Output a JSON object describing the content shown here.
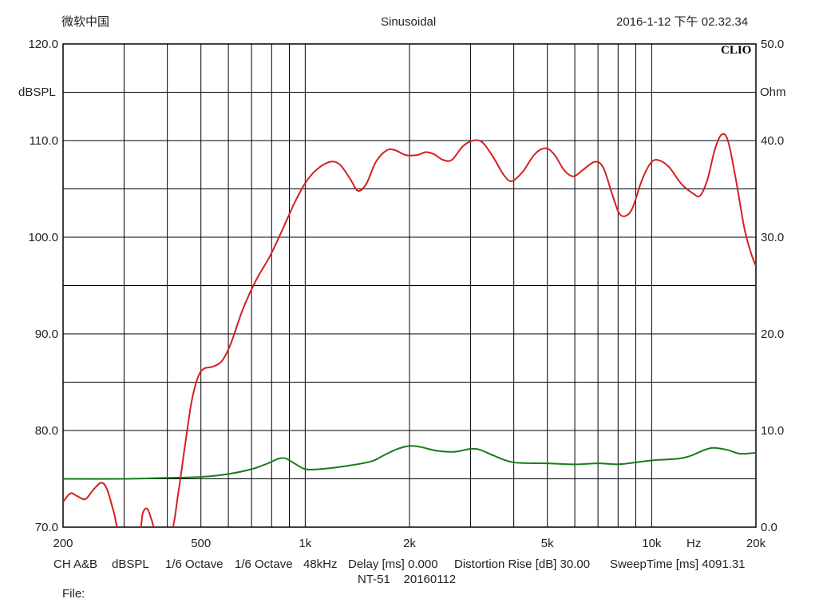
{
  "header": {
    "app": "微软中国",
    "mode": "Sinusoidal",
    "datetime": "2016-1-12 下午 02.32.34"
  },
  "brand": "CLIO",
  "chart_data": {
    "type": "line",
    "x_scale": "log",
    "xlim": [
      200,
      20000
    ],
    "x_ticks": [
      {
        "value": 200,
        "label": "200"
      },
      {
        "value": 500,
        "label": "500"
      },
      {
        "value": 1000,
        "label": "1k"
      },
      {
        "value": 2000,
        "label": "2k"
      },
      {
        "value": 5000,
        "label": "5k"
      },
      {
        "value": 10000,
        "label": "10k"
      },
      {
        "value": 20000,
        "label": "20k"
      }
    ],
    "x_unit": "Hz",
    "y_left": {
      "label": "dBSPL",
      "ylim": [
        70,
        120
      ],
      "ticks": [
        {
          "value": 70,
          "label": "70.0"
        },
        {
          "value": 80,
          "label": "80.0"
        },
        {
          "value": 90,
          "label": "90.0"
        },
        {
          "value": 100,
          "label": "100.0"
        },
        {
          "value": 110,
          "label": "110.0"
        },
        {
          "value": 120,
          "label": "120.0"
        }
      ]
    },
    "y_right": {
      "label": "Ohm",
      "ylim": [
        0,
        50
      ],
      "ticks": [
        {
          "value": 0,
          "label": "0.0"
        },
        {
          "value": 10,
          "label": "10.0"
        },
        {
          "value": 20,
          "label": "20.0"
        },
        {
          "value": 30,
          "label": "30.0"
        },
        {
          "value": 40,
          "label": "40.0"
        },
        {
          "value": 50,
          "label": "50.0"
        }
      ]
    },
    "grid": true,
    "series": [
      {
        "axis": "left",
        "color": "#d42020",
        "points": [
          [
            200,
            72.6
          ],
          [
            210,
            73.5
          ],
          [
            220,
            73.2
          ],
          [
            232,
            72.9
          ],
          [
            245,
            73.9
          ],
          [
            258,
            74.6
          ],
          [
            268,
            73.9
          ],
          [
            280,
            71.6
          ],
          [
            292,
            69.5
          ],
          [
            330,
            69.5
          ],
          [
            340,
            71.5
          ],
          [
            350,
            71.9
          ],
          [
            360,
            70.8
          ],
          [
            372,
            69.5
          ],
          [
            410,
            69.5
          ],
          [
            430,
            73.5
          ],
          [
            450,
            78.5
          ],
          [
            470,
            83.0
          ],
          [
            490,
            85.5
          ],
          [
            510,
            86.4
          ],
          [
            540,
            86.6
          ],
          [
            575,
            87.2
          ],
          [
            610,
            89.0
          ],
          [
            660,
            92.5
          ],
          [
            720,
            95.5
          ],
          [
            790,
            98.0
          ],
          [
            860,
            100.8
          ],
          [
            930,
            103.5
          ],
          [
            1000,
            105.6
          ],
          [
            1080,
            107.0
          ],
          [
            1180,
            107.8
          ],
          [
            1260,
            107.5
          ],
          [
            1350,
            106.0
          ],
          [
            1420,
            104.8
          ],
          [
            1500,
            105.5
          ],
          [
            1600,
            107.8
          ],
          [
            1720,
            109.0
          ],
          [
            1820,
            109.0
          ],
          [
            1950,
            108.5
          ],
          [
            2100,
            108.5
          ],
          [
            2230,
            108.8
          ],
          [
            2350,
            108.6
          ],
          [
            2500,
            108.0
          ],
          [
            2650,
            108.0
          ],
          [
            2850,
            109.4
          ],
          [
            3050,
            110.0
          ],
          [
            3250,
            109.8
          ],
          [
            3500,
            108.2
          ],
          [
            3750,
            106.4
          ],
          [
            3950,
            105.8
          ],
          [
            4250,
            106.8
          ],
          [
            4600,
            108.6
          ],
          [
            4950,
            109.2
          ],
          [
            5250,
            108.5
          ],
          [
            5600,
            106.9
          ],
          [
            5950,
            106.3
          ],
          [
            6350,
            107.0
          ],
          [
            6850,
            107.8
          ],
          [
            7250,
            107.2
          ],
          [
            7700,
            104.4
          ],
          [
            8050,
            102.5
          ],
          [
            8400,
            102.2
          ],
          [
            8800,
            103.0
          ],
          [
            9350,
            105.8
          ],
          [
            9900,
            107.6
          ],
          [
            10400,
            108.0
          ],
          [
            11200,
            107.3
          ],
          [
            12200,
            105.5
          ],
          [
            13200,
            104.5
          ],
          [
            13800,
            104.3
          ],
          [
            14500,
            106.0
          ],
          [
            15200,
            109.0
          ],
          [
            15900,
            110.6
          ],
          [
            16600,
            110.0
          ],
          [
            17500,
            106.0
          ],
          [
            18500,
            101.0
          ],
          [
            19300,
            98.5
          ],
          [
            20000,
            97.0
          ]
        ]
      },
      {
        "axis": "right",
        "color": "#1a7a1a",
        "points": [
          [
            200,
            5.0
          ],
          [
            300,
            5.0
          ],
          [
            400,
            5.1
          ],
          [
            500,
            5.2
          ],
          [
            600,
            5.5
          ],
          [
            700,
            6.0
          ],
          [
            780,
            6.6
          ],
          [
            840,
            7.1
          ],
          [
            880,
            7.1
          ],
          [
            930,
            6.6
          ],
          [
            1000,
            6.0
          ],
          [
            1100,
            6.0
          ],
          [
            1300,
            6.3
          ],
          [
            1550,
            6.8
          ],
          [
            1700,
            7.5
          ],
          [
            1850,
            8.1
          ],
          [
            2000,
            8.4
          ],
          [
            2150,
            8.3
          ],
          [
            2400,
            7.9
          ],
          [
            2700,
            7.8
          ],
          [
            3000,
            8.1
          ],
          [
            3200,
            8.0
          ],
          [
            3500,
            7.4
          ],
          [
            4000,
            6.7
          ],
          [
            5000,
            6.6
          ],
          [
            6000,
            6.5
          ],
          [
            7000,
            6.6
          ],
          [
            8000,
            6.5
          ],
          [
            9000,
            6.7
          ],
          [
            10000,
            6.9
          ],
          [
            12000,
            7.1
          ],
          [
            13000,
            7.4
          ],
          [
            14000,
            7.9
          ],
          [
            15000,
            8.2
          ],
          [
            16500,
            8.0
          ],
          [
            18000,
            7.6
          ],
          [
            20000,
            7.7
          ]
        ]
      }
    ]
  },
  "footer": {
    "channel": "CH A&B",
    "unit": "dBSPL",
    "smooth1": "1/6 Octave",
    "smooth2": "1/6 Octave",
    "rate": "48kHz",
    "delay": "Delay [ms] 0.000",
    "distortion": "Distortion Rise [dB] 30.00",
    "sweep": "SweepTime [ms] 4091.31",
    "note": "NT-51    20160112",
    "file": "File:"
  }
}
